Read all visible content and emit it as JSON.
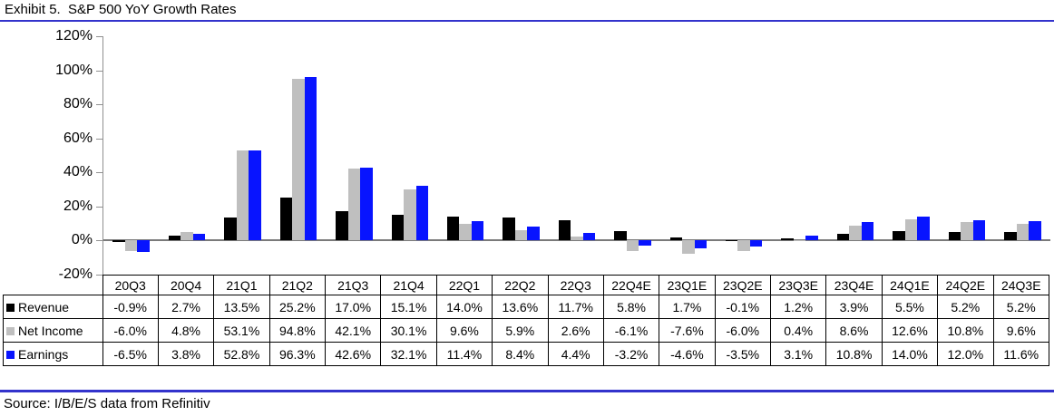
{
  "title": "Exhibit 5.  S&P 500 YoY Growth Rates",
  "source": "Source: I/B/E/S data from Refinitiv",
  "colors": {
    "revenue": "#000000",
    "net_income": "#bfbfbf",
    "earnings": "#0814ff",
    "rule_blue": "#3333cc",
    "zero_line": "#7a7a7a",
    "axis_gray": "#909090",
    "table_border": "#000000"
  },
  "chart_data": {
    "type": "bar",
    "title": "Exhibit 5.  S&P 500 YoY Growth Rates",
    "categories": [
      "20Q3",
      "20Q4",
      "21Q1",
      "21Q2",
      "21Q3",
      "21Q4",
      "22Q1",
      "22Q2",
      "22Q3",
      "22Q4E",
      "23Q1E",
      "23Q2E",
      "23Q3E",
      "23Q4E",
      "24Q1E",
      "24Q2E",
      "24Q3E"
    ],
    "series": [
      {
        "name": "Revenue",
        "color_key": "revenue",
        "values": [
          -0.9,
          2.7,
          13.5,
          25.2,
          17.0,
          15.1,
          14.0,
          13.6,
          11.7,
          5.8,
          1.7,
          -0.1,
          1.2,
          3.9,
          5.5,
          5.2,
          5.2
        ]
      },
      {
        "name": "Net Income",
        "color_key": "net_income",
        "values": [
          -6.0,
          4.8,
          53.1,
          94.8,
          42.1,
          30.1,
          9.6,
          5.9,
          2.6,
          -6.1,
          -7.6,
          -6.0,
          0.4,
          8.6,
          12.6,
          10.8,
          9.6
        ]
      },
      {
        "name": "Earnings",
        "color_key": "earnings",
        "values": [
          -6.5,
          3.8,
          52.8,
          96.3,
          42.6,
          32.1,
          11.4,
          8.4,
          4.4,
          -3.2,
          -4.6,
          -3.5,
          3.1,
          10.8,
          14.0,
          12.0,
          11.6
        ]
      }
    ],
    "y_ticks": [
      "120%",
      "100%",
      "80%",
      "60%",
      "40%",
      "20%",
      "0%",
      "-20%"
    ],
    "y_tick_values": [
      120,
      100,
      80,
      60,
      40,
      20,
      0,
      -20
    ],
    "ylim": [
      -20,
      120
    ],
    "grid": false,
    "legend_position": "table-left",
    "value_suffix": "%",
    "value_decimals": 1
  }
}
